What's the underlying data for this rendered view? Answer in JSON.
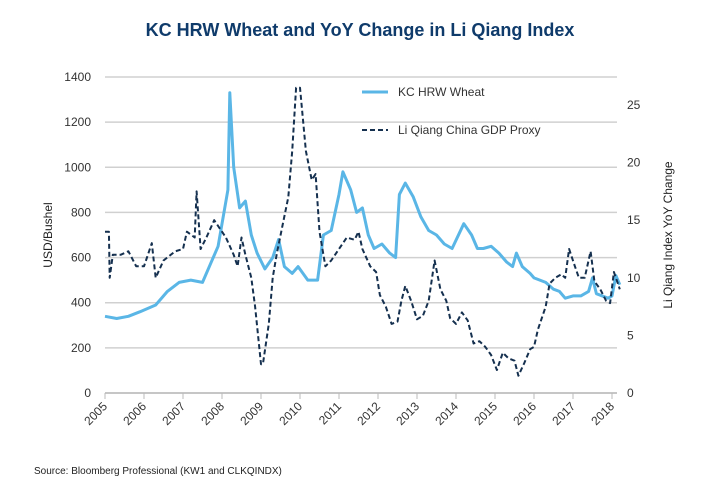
{
  "chart_data": {
    "type": "line",
    "title": "KC HRW Wheat and YoY Change in Li Qiang Index",
    "source": "Source: Bloomberg Professional (KW1 and CLKQINDX)",
    "ylabel": "USD/Bushel",
    "y2label": "Li Qiang Index YoY Change",
    "xlim": [
      2005,
      2018.2
    ],
    "ylim": [
      0,
      1400
    ],
    "y2lim": [
      0,
      27.5
    ],
    "x_ticks": [
      "2005",
      "2006",
      "2007",
      "2008",
      "2009",
      "2010",
      "2011",
      "2012",
      "2013",
      "2014",
      "2015",
      "2016",
      "2017",
      "2018"
    ],
    "y_ticks": [
      "0",
      "200",
      "400",
      "600",
      "800",
      "1000",
      "1200",
      "1400"
    ],
    "y2_ticks": [
      "0",
      "5",
      "10",
      "15",
      "20",
      "25"
    ],
    "grid": true,
    "legend": "top-right",
    "series": [
      {
        "name": "KC HRW Wheat",
        "axis": "left",
        "color": "#5ab6e6",
        "style": "solid",
        "x": [
          2005.0,
          2005.3,
          2005.6,
          2005.9,
          2006.3,
          2006.6,
          2006.9,
          2007.2,
          2007.5,
          2007.7,
          2007.9,
          2008.0,
          2008.15,
          2008.2,
          2008.3,
          2008.45,
          2008.6,
          2008.75,
          2008.9,
          2009.1,
          2009.3,
          2009.45,
          2009.6,
          2009.8,
          2009.95,
          2010.2,
          2010.45,
          2010.6,
          2010.8,
          2011.0,
          2011.1,
          2011.3,
          2011.45,
          2011.6,
          2011.75,
          2011.9,
          2012.1,
          2012.3,
          2012.45,
          2012.55,
          2012.7,
          2012.9,
          2013.1,
          2013.3,
          2013.5,
          2013.7,
          2013.9,
          2014.2,
          2014.4,
          2014.55,
          2014.7,
          2014.9,
          2015.1,
          2015.3,
          2015.45,
          2015.55,
          2015.7,
          2015.9,
          2016.0,
          2016.3,
          2016.5,
          2016.65,
          2016.8,
          2017.0,
          2017.2,
          2017.4,
          2017.5,
          2017.6,
          2017.9,
          2018.0,
          2018.1,
          2018.2
        ],
        "values": [
          340,
          330,
          340,
          360,
          390,
          450,
          490,
          500,
          490,
          570,
          650,
          750,
          900,
          1330,
          1000,
          820,
          850,
          700,
          620,
          550,
          600,
          680,
          560,
          530,
          560,
          500,
          500,
          700,
          720,
          880,
          980,
          900,
          800,
          820,
          700,
          640,
          660,
          620,
          600,
          880,
          930,
          870,
          780,
          720,
          700,
          660,
          640,
          750,
          700,
          640,
          640,
          650,
          620,
          580,
          560,
          620,
          560,
          530,
          510,
          490,
          460,
          450,
          420,
          430,
          430,
          450,
          510,
          440,
          420,
          430,
          520,
          480
        ]
      },
      {
        "name": "Li Qiang China GDP Proxy",
        "axis": "right",
        "color": "#15304f",
        "style": "dashed",
        "x": [
          2005.0,
          2005.1,
          2005.12,
          2005.2,
          2005.4,
          2005.6,
          2005.8,
          2006.0,
          2006.2,
          2006.3,
          2006.5,
          2006.8,
          2007.0,
          2007.1,
          2007.3,
          2007.35,
          2007.45,
          2007.6,
          2007.8,
          2008.0,
          2008.1,
          2008.3,
          2008.4,
          2008.5,
          2008.6,
          2008.75,
          2008.85,
          2009.0,
          2009.05,
          2009.2,
          2009.3,
          2009.4,
          2009.55,
          2009.7,
          2009.8,
          2009.9,
          2010.0,
          2010.15,
          2010.3,
          2010.4,
          2010.5,
          2010.65,
          2010.8,
          2011.0,
          2011.2,
          2011.4,
          2011.5,
          2011.6,
          2011.8,
          2011.95,
          2012.05,
          2012.2,
          2012.35,
          2012.5,
          2012.6,
          2012.7,
          2012.85,
          2013.0,
          2013.15,
          2013.3,
          2013.45,
          2013.6,
          2013.75,
          2013.85,
          2014.0,
          2014.15,
          2014.3,
          2014.45,
          2014.6,
          2014.75,
          2014.9,
          2015.05,
          2015.2,
          2015.35,
          2015.5,
          2015.6,
          2015.75,
          2015.9,
          2016.0,
          2016.1,
          2016.2,
          2016.3,
          2016.4,
          2016.55,
          2016.7,
          2016.8,
          2016.9,
          2017.05,
          2017.15,
          2017.3,
          2017.45,
          2017.55,
          2017.7,
          2017.85,
          2017.95,
          2018.05,
          2018.15,
          2018.2
        ],
        "values": [
          14,
          14,
          10,
          12,
          12,
          12.3,
          11,
          11,
          13,
          10,
          11.5,
          12.3,
          12.5,
          14,
          13.5,
          17.5,
          12.5,
          13.5,
          15,
          14,
          13.5,
          12,
          11,
          13.5,
          12,
          10,
          7.5,
          2.5,
          2.5,
          6,
          10,
          12,
          14.5,
          17,
          21,
          26.5,
          26.5,
          21,
          18.5,
          19,
          14,
          11,
          11.5,
          12.5,
          13.5,
          13.3,
          14,
          12.5,
          11,
          10.5,
          8.5,
          7.5,
          6,
          6.2,
          8,
          9.3,
          8,
          6.4,
          6.7,
          8,
          11.5,
          9,
          8,
          6.5,
          6,
          7,
          6.3,
          4.3,
          4.5,
          4,
          3.3,
          2,
          3.5,
          3,
          2.8,
          1.5,
          2.6,
          3.8,
          4,
          5.5,
          6.5,
          7.5,
          9.5,
          10,
          10.3,
          10,
          12.5,
          11,
          10,
          10,
          12.3,
          9.7,
          9,
          8,
          7.8,
          10.5,
          9.5,
          9
        ]
      }
    ]
  }
}
